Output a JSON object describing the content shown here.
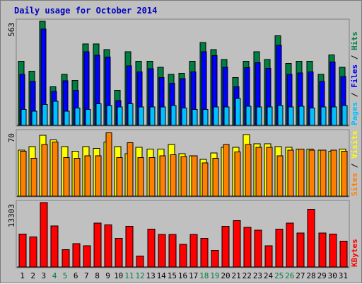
{
  "title": "Daily usage for October 2014",
  "colors": {
    "frame_bg": "#c0c0c0",
    "title": "#0000c0",
    "pages": "#00c0ff",
    "files": "#0000ff",
    "hits": "#008040",
    "visits": "#ffff00",
    "sites": "#ff8000",
    "kbytes": "#ff0000",
    "weekend_day": "#008040",
    "weekday": "#000000"
  },
  "chart_data": [
    {
      "type": "bar",
      "title": "Daily usage for October 2014",
      "panel": "hits-files-pages",
      "ymax_label": "563",
      "ylim": [
        0,
        563
      ],
      "side_label_parts": [
        "Pages",
        "Files",
        "Hits"
      ],
      "categories": [
        "1",
        "2",
        "3",
        "4",
        "5",
        "6",
        "7",
        "8",
        "9",
        "10",
        "11",
        "12",
        "13",
        "14",
        "15",
        "16",
        "17",
        "18",
        "19",
        "20",
        "21",
        "22",
        "23",
        "24",
        "25",
        "26",
        "27",
        "28",
        "29",
        "30",
        "31"
      ],
      "series": [
        {
          "name": "Hits",
          "values": [
            347,
            293,
            563,
            209,
            276,
            243,
            440,
            440,
            410,
            189,
            398,
            347,
            347,
            315,
            276,
            281,
            347,
            449,
            410,
            356,
            259,
            347,
            398,
            356,
            485,
            335,
            347,
            347,
            276,
            381,
            315
          ]
        },
        {
          "name": "Files",
          "values": [
            276,
            237,
            520,
            184,
            242,
            189,
            398,
            380,
            370,
            135,
            321,
            290,
            307,
            259,
            227,
            253,
            290,
            398,
            378,
            315,
            208,
            312,
            339,
            308,
            432,
            276,
            284,
            290,
            237,
            343,
            264
          ]
        },
        {
          "name": "Pages",
          "values": [
            86,
            77,
            113,
            130,
            77,
            94,
            86,
            117,
            108,
            99,
            117,
            99,
            99,
            99,
            108,
            94,
            86,
            86,
            99,
            99,
            146,
            104,
            99,
            99,
            108,
            99,
            104,
            94,
            99,
            99,
            108
          ]
        }
      ]
    },
    {
      "type": "bar",
      "panel": "visits-sites",
      "ymax_label": "70",
      "ylim": [
        0,
        70
      ],
      "side_label_parts": [
        "Sites",
        "Visits"
      ],
      "categories": [
        "1",
        "2",
        "3",
        "4",
        "5",
        "6",
        "7",
        "8",
        "9",
        "10",
        "11",
        "12",
        "13",
        "14",
        "15",
        "16",
        "17",
        "18",
        "19",
        "20",
        "21",
        "22",
        "23",
        "24",
        "25",
        "26",
        "27",
        "28",
        "29",
        "30",
        "31"
      ],
      "series": [
        {
          "name": "Visits",
          "values": [
            50,
            54,
            66,
            61,
            54,
            49,
            54,
            52,
            59,
            54,
            46,
            53,
            51,
            51,
            56,
            46,
            44,
            40,
            47,
            53,
            53,
            67,
            57,
            57,
            54,
            53,
            51,
            51,
            50,
            49,
            51
          ]
        },
        {
          "name": "Sites",
          "values": [
            49,
            41,
            56,
            59,
            42,
            41,
            44,
            44,
            69,
            42,
            58,
            42,
            42,
            44,
            45,
            43,
            44,
            36,
            41,
            56,
            48,
            56,
            53,
            53,
            44,
            50,
            51,
            50,
            50,
            50,
            49
          ]
        }
      ]
    },
    {
      "type": "bar",
      "panel": "kbytes",
      "ymax_label": "13303",
      "ylim": [
        0,
        13303
      ],
      "side_label_parts": [
        "KBytes"
      ],
      "categories": [
        "1",
        "2",
        "3",
        "4",
        "5",
        "6",
        "7",
        "8",
        "9",
        "10",
        "11",
        "12",
        "13",
        "14",
        "15",
        "16",
        "17",
        "18",
        "19",
        "20",
        "21",
        "22",
        "23",
        "24",
        "25",
        "26",
        "27",
        "28",
        "29",
        "30",
        "31"
      ],
      "series": [
        {
          "name": "KBytes",
          "values": [
            6800,
            6200,
            13303,
            8500,
            3600,
            4800,
            4400,
            9100,
            8700,
            5900,
            8400,
            2300,
            7800,
            6700,
            6700,
            4700,
            6700,
            5900,
            3400,
            8400,
            9600,
            8200,
            7600,
            4400,
            7800,
            9100,
            7000,
            11900,
            7000,
            6800,
            5300
          ]
        }
      ]
    }
  ],
  "weekend_days": [
    4,
    5,
    11,
    12,
    18,
    19,
    25,
    26
  ]
}
